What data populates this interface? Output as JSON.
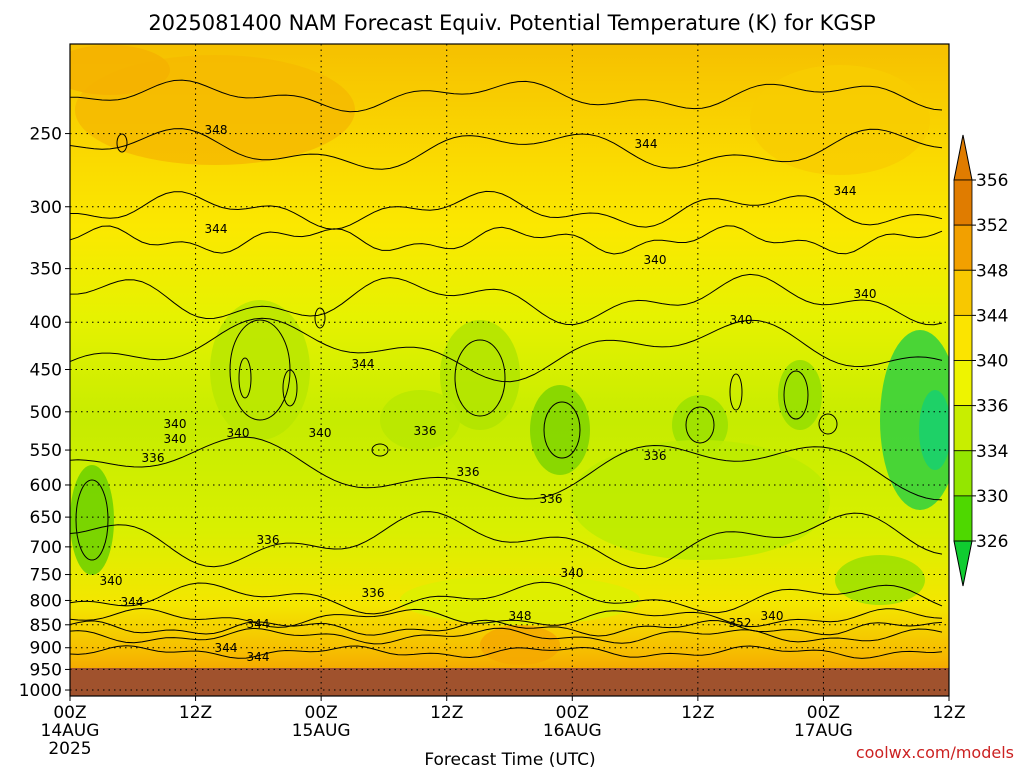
{
  "chart_data": {
    "type": "heatmap",
    "title": "2025081400 NAM Forecast Equiv. Potential Temperature (K) for KGSP",
    "xlabel": "Forecast Time (UTC)",
    "ylabel": "",
    "y_ticks": [
      250,
      300,
      350,
      400,
      450,
      500,
      550,
      600,
      650,
      700,
      750,
      800,
      850,
      900,
      950,
      1000
    ],
    "y_range": [
      1015,
      200
    ],
    "y_scale": "log",
    "x_hours": [
      0,
      12,
      24,
      36,
      48,
      60,
      72,
      84
    ],
    "x_tick_labels": [
      {
        "time": "00Z",
        "date": "14AUG",
        "year": "2025"
      },
      {
        "time": "12Z",
        "date": "",
        "year": ""
      },
      {
        "time": "00Z",
        "date": "15AUG",
        "year": ""
      },
      {
        "time": "12Z",
        "date": "",
        "year": ""
      },
      {
        "time": "00Z",
        "date": "16AUG",
        "year": ""
      },
      {
        "time": "12Z",
        "date": "",
        "year": ""
      },
      {
        "time": "00Z",
        "date": "17AUG",
        "year": ""
      },
      {
        "time": "12Z",
        "date": "",
        "year": ""
      }
    ],
    "grid": true,
    "colorbar": {
      "labels": [
        "356",
        "352",
        "348",
        "344",
        "340",
        "336",
        "334",
        "330",
        "326"
      ],
      "colors": [
        "#e07c00",
        "#f2a000",
        "#f8c800",
        "#fbe400",
        "#eef400",
        "#c8ee00",
        "#94e600",
        "#4ed800",
        "#10cc30"
      ]
    },
    "contour_labels": [
      "348",
      "344",
      "344",
      "344",
      "344",
      "340",
      "340",
      "340",
      "340",
      "340",
      "340",
      "340",
      "336",
      "336",
      "336",
      "336",
      "336",
      "336",
      "336",
      "340",
      "340",
      "344",
      "344",
      "348",
      "352",
      "344",
      "344",
      "340"
    ],
    "ground_color": "#a0522d"
  },
  "credit": "coolwx.com/models"
}
